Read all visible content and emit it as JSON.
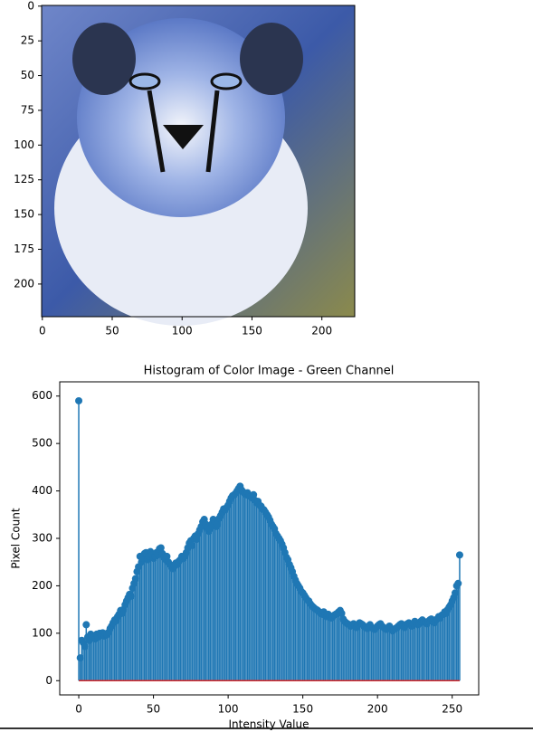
{
  "chart_data": [
    {
      "type": "image",
      "xlim": [
        -0.5,
        223.5
      ],
      "xticks": [
        0,
        50,
        100,
        150,
        200
      ],
      "ylim": [
        223.5,
        -0.5
      ],
      "yticks": [
        0,
        25,
        50,
        75,
        100,
        125,
        150,
        175,
        200
      ]
    },
    {
      "type": "stem",
      "title": "Histogram of Color Image - Green Channel",
      "xlabel": "Intensity Value",
      "ylabel": "Pixel Count",
      "color": "#1f77b4",
      "baseline_color": "#d62728",
      "xlim": [
        -12.75,
        267.75
      ],
      "xticks": [
        0,
        50,
        100,
        150,
        200,
        250
      ],
      "ylim": [
        -30,
        630
      ],
      "yticks": [
        0,
        100,
        200,
        300,
        400,
        500,
        600
      ],
      "x": [
        0,
        1,
        2,
        3,
        4,
        5,
        6,
        7,
        8,
        9,
        10,
        11,
        12,
        13,
        14,
        15,
        16,
        17,
        18,
        19,
        20,
        21,
        22,
        23,
        24,
        25,
        26,
        27,
        28,
        29,
        30,
        31,
        32,
        33,
        34,
        35,
        36,
        37,
        38,
        39,
        40,
        41,
        42,
        43,
        44,
        45,
        46,
        47,
        48,
        49,
        50,
        51,
        52,
        53,
        54,
        55,
        56,
        57,
        58,
        59,
        60,
        61,
        62,
        63,
        64,
        65,
        66,
        67,
        68,
        69,
        70,
        71,
        72,
        73,
        74,
        75,
        76,
        77,
        78,
        79,
        80,
        81,
        82,
        83,
        84,
        85,
        86,
        87,
        88,
        89,
        90,
        91,
        92,
        93,
        94,
        95,
        96,
        97,
        98,
        99,
        100,
        101,
        102,
        103,
        104,
        105,
        106,
        107,
        108,
        109,
        110,
        111,
        112,
        113,
        114,
        115,
        116,
        117,
        118,
        119,
        120,
        121,
        122,
        123,
        124,
        125,
        126,
        127,
        128,
        129,
        130,
        131,
        132,
        133,
        134,
        135,
        136,
        137,
        138,
        139,
        140,
        141,
        142,
        143,
        144,
        145,
        146,
        147,
        148,
        149,
        150,
        151,
        152,
        153,
        154,
        155,
        156,
        157,
        158,
        159,
        160,
        161,
        162,
        163,
        164,
        165,
        166,
        167,
        168,
        169,
        170,
        171,
        172,
        173,
        174,
        175,
        176,
        177,
        178,
        179,
        180,
        181,
        182,
        183,
        184,
        185,
        186,
        187,
        188,
        189,
        190,
        191,
        192,
        193,
        194,
        195,
        196,
        197,
        198,
        199,
        200,
        201,
        202,
        203,
        204,
        205,
        206,
        207,
        208,
        209,
        210,
        211,
        212,
        213,
        214,
        215,
        216,
        217,
        218,
        219,
        220,
        221,
        222,
        223,
        224,
        225,
        226,
        227,
        228,
        229,
        230,
        231,
        232,
        233,
        234,
        235,
        236,
        237,
        238,
        239,
        240,
        241,
        242,
        243,
        244,
        245,
        246,
        247,
        248,
        249,
        250,
        251,
        252,
        253,
        254,
        255
      ],
      "values": [
        590,
        48,
        85,
        80,
        72,
        118,
        92,
        85,
        98,
        94,
        95,
        88,
        98,
        92,
        100,
        96,
        101,
        94,
        99,
        97,
        102,
        110,
        115,
        122,
        128,
        126,
        135,
        140,
        148,
        142,
        150,
        160,
        168,
        175,
        182,
        178,
        195,
        205,
        215,
        230,
        240,
        262,
        250,
        258,
        268,
        270,
        255,
        262,
        272,
        265,
        258,
        262,
        270,
        265,
        278,
        280,
        268,
        260,
        255,
        262,
        250,
        245,
        240,
        236,
        242,
        248,
        245,
        252,
        255,
        262,
        258,
        262,
        270,
        280,
        290,
        295,
        285,
        300,
        305,
        298,
        310,
        318,
        325,
        335,
        340,
        330,
        322,
        315,
        320,
        330,
        340,
        335,
        325,
        330,
        342,
        348,
        355,
        362,
        360,
        365,
        370,
        378,
        385,
        390,
        392,
        395,
        400,
        405,
        410,
        402,
        398,
        395,
        392,
        396,
        390,
        388,
        385,
        392,
        380,
        375,
        378,
        370,
        368,
        362,
        360,
        355,
        350,
        345,
        338,
        330,
        325,
        320,
        310,
        305,
        300,
        295,
        288,
        280,
        270,
        260,
        255,
        245,
        238,
        230,
        220,
        212,
        205,
        200,
        195,
        188,
        185,
        180,
        175,
        170,
        168,
        162,
        158,
        155,
        152,
        150,
        148,
        145,
        142,
        140,
        145,
        138,
        135,
        140,
        136,
        132,
        135,
        138,
        140,
        142,
        145,
        148,
        142,
        130,
        125,
        122,
        120,
        118,
        115,
        118,
        120,
        115,
        112,
        118,
        122,
        120,
        118,
        115,
        112,
        110,
        115,
        118,
        112,
        110,
        108,
        112,
        115,
        118,
        120,
        115,
        112,
        110,
        108,
        112,
        115,
        110,
        105,
        108,
        110,
        112,
        115,
        118,
        120,
        115,
        112,
        118,
        120,
        122,
        118,
        115,
        120,
        125,
        122,
        118,
        120,
        125,
        128,
        125,
        122,
        120,
        125,
        128,
        130,
        125,
        122,
        128,
        130,
        135,
        132,
        138,
        140,
        145,
        142,
        150,
        155,
        160,
        168,
        175,
        185,
        200,
        205,
        265
      ]
    }
  ]
}
